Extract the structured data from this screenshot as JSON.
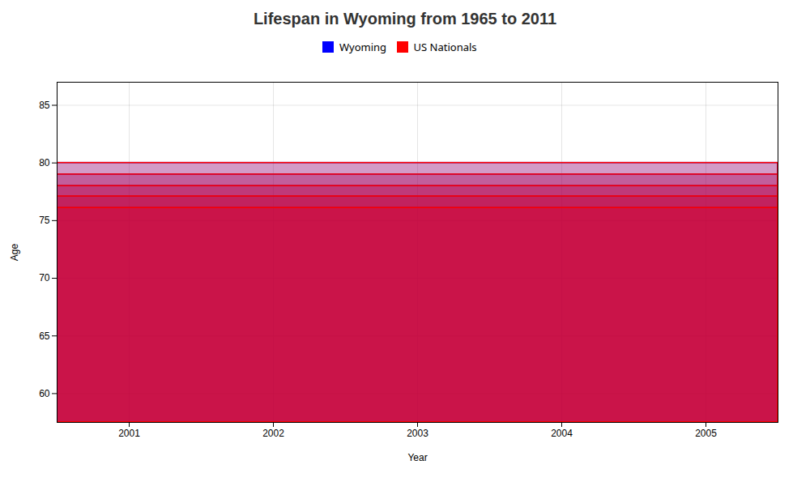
{
  "chart_data": {
    "type": "bar",
    "title": "Lifespan in Wyoming from 1965 to 2011",
    "xlabel": "Year",
    "ylabel": "Age",
    "categories": [
      "2001",
      "2002",
      "2003",
      "2004",
      "2005"
    ],
    "series": [
      {
        "name": "Wyoming",
        "color": "#0000ff",
        "values": [
          76.1,
          77.1,
          78.0,
          79.0,
          80.0
        ]
      },
      {
        "name": "US Nationals",
        "color": "#ff0000",
        "values": [
          76.1,
          77.1,
          78.0,
          79.0,
          80.0
        ]
      }
    ],
    "ylim": [
      57.5,
      87
    ],
    "yticks": [
      60,
      65,
      70,
      75,
      80,
      85
    ],
    "grid": true,
    "legend": "top"
  }
}
